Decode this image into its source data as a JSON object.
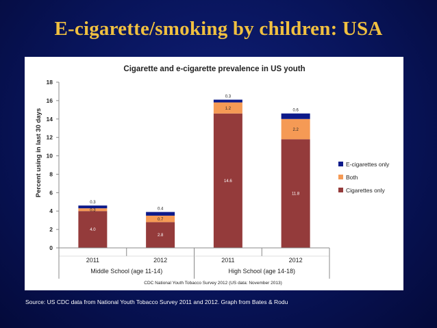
{
  "slide": {
    "title": "E-cigarette/smoking by children: USA",
    "source": "Source: US CDC  data from National Youth Tobacco Survey 2011 and 2012. Graph from Bates & Rodu"
  },
  "colors": {
    "ecig": "#0d1a8a",
    "both": "#f59a55",
    "cig": "#943b3b",
    "title": "#f0c040"
  },
  "chart_data": {
    "type": "bar",
    "stacked": true,
    "title": "Cigarette and e-cigarette prevalence in US youth",
    "ylabel": "Percent using in last 30 days",
    "xlabel": "",
    "ylim": [
      0,
      18
    ],
    "yticks": [
      0,
      2,
      4,
      6,
      8,
      10,
      12,
      14,
      16,
      18
    ],
    "categories": [
      "2011",
      "2012",
      "2011",
      "2012"
    ],
    "groups": [
      {
        "label": "Middle School (age 11-14)",
        "start": 0,
        "end": 2
      },
      {
        "label": "High School (age 14-18)",
        "start": 2,
        "end": 4
      }
    ],
    "series": [
      {
        "name": "Cigarettes only",
        "color": "#943b3b",
        "values": [
          4.0,
          2.8,
          14.6,
          11.8
        ],
        "labels": [
          "4.0",
          "2.8",
          "14.6",
          "11.8"
        ]
      },
      {
        "name": "Both",
        "color": "#f59a55",
        "values": [
          0.3,
          0.7,
          1.2,
          2.2
        ],
        "labels": [
          "0.3",
          "0.7",
          "1.2",
          "2.2"
        ]
      },
      {
        "name": "E-cigarettes only",
        "color": "#0d1a8a",
        "values": [
          0.3,
          0.4,
          0.3,
          0.6
        ],
        "labels": [
          "0.3",
          "0.4",
          "0.3",
          "0.6"
        ]
      }
    ],
    "legend": [
      "E-cigarettes only",
      "Both",
      "Cigarettes only"
    ],
    "legend_position": "right",
    "footnote": "CDC National Youth Tobacco Survey 2012 (US data: November 2013)"
  }
}
